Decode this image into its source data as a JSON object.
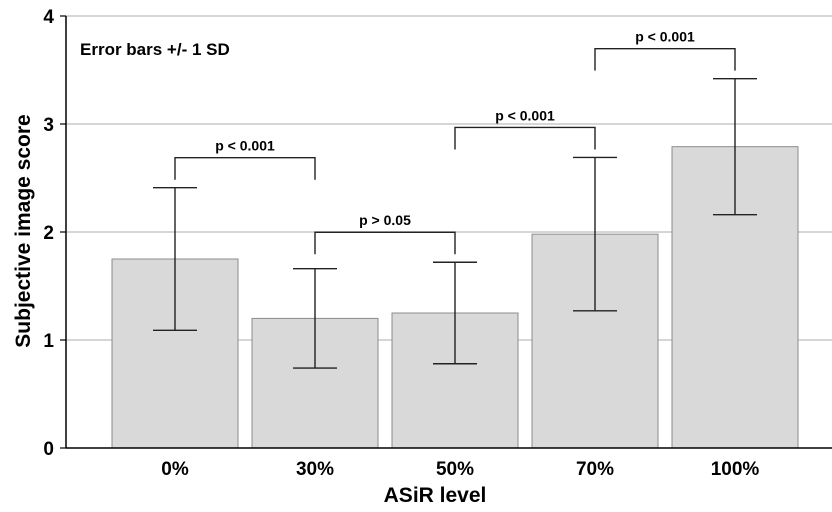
{
  "chart_data": {
    "type": "bar",
    "title": "",
    "annotation": "Error bars +/- 1 SD",
    "xlabel": "ASiR level",
    "ylabel": "Subjective image score",
    "categories": [
      "0%",
      "30%",
      "50%",
      "70%",
      "100%"
    ],
    "values": [
      1.75,
      1.2,
      1.25,
      1.98,
      2.79
    ],
    "error_sd": [
      0.66,
      0.46,
      0.47,
      0.71,
      0.63
    ],
    "ylim": [
      0,
      4
    ],
    "yticks": [
      "0",
      "1",
      "2",
      "3",
      "4"
    ],
    "grid": true,
    "bar_color": "#d9d9d9",
    "comparisons": [
      {
        "from": 0,
        "to": 1,
        "label": "p < 0.001"
      },
      {
        "from": 1,
        "to": 2,
        "label": "p > 0.05"
      },
      {
        "from": 2,
        "to": 3,
        "label": "p < 0.001"
      },
      {
        "from": 3,
        "to": 4,
        "label": "p < 0.001"
      }
    ]
  }
}
